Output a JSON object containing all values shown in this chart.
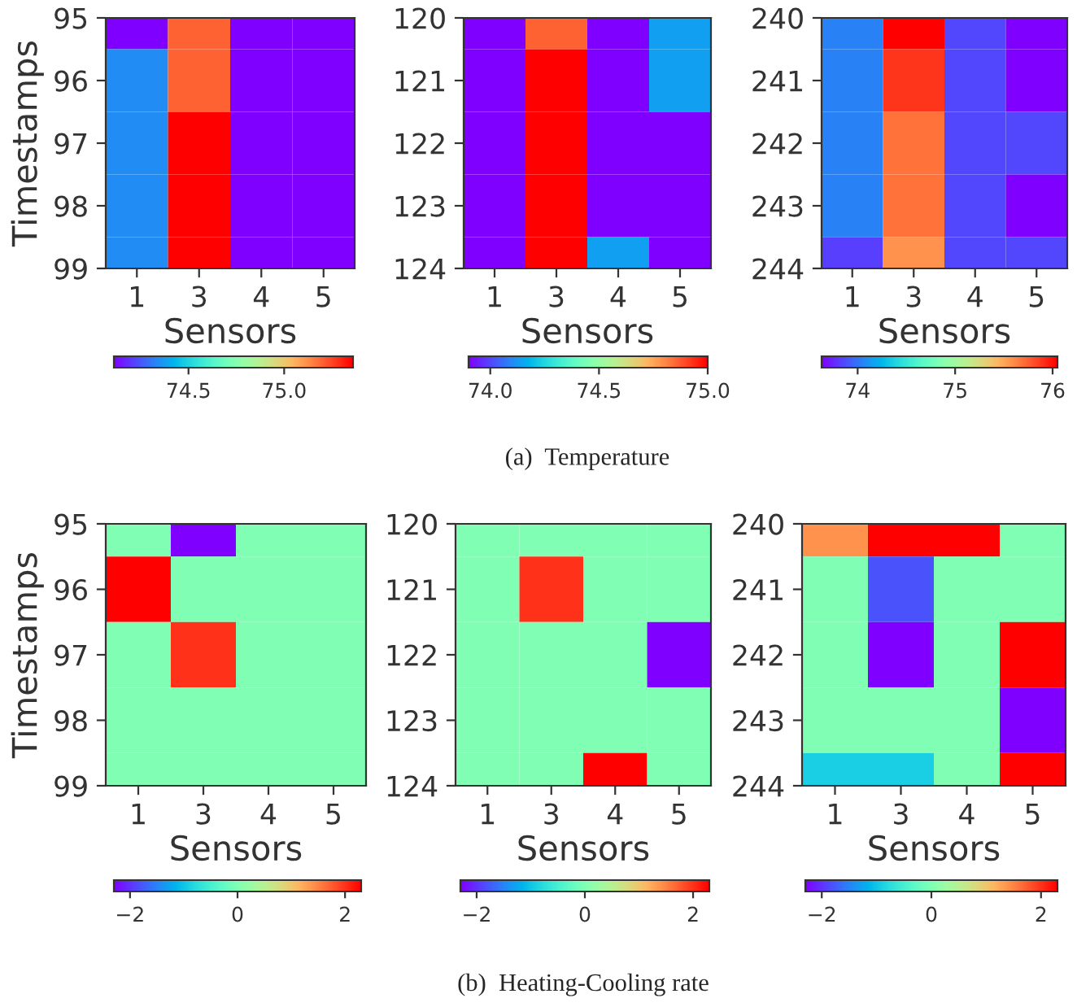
{
  "chart_data": [
    {
      "type": "heatmap",
      "ylabel": "Timestamps",
      "xlabel": "Sensors",
      "categories": [
        "1",
        "3",
        "4",
        "5"
      ],
      "y_categories": [
        "95",
        "96",
        "97",
        "98",
        "99"
      ],
      "cells": [
        [
          74.11,
          75.2,
          74.11,
          74.11
        ],
        [
          74.34,
          75.2,
          74.11,
          74.11
        ],
        [
          74.34,
          75.36,
          74.11,
          74.11
        ],
        [
          74.34,
          75.36,
          74.11,
          74.11
        ],
        [
          74.34,
          75.36,
          74.11,
          74.11
        ]
      ],
      "clim": [
        74.11,
        75.36
      ],
      "cticks": [
        {
          "value": 74.5,
          "label": "74.5"
        },
        {
          "value": 75.0,
          "label": "75.0"
        }
      ]
    },
    {
      "type": "heatmap",
      "xlabel": "Sensors",
      "categories": [
        "1",
        "3",
        "4",
        "5"
      ],
      "y_categories": [
        "120",
        "121",
        "122",
        "123",
        "124"
      ],
      "cells": [
        [
          73.9,
          74.86,
          73.9,
          74.14
        ],
        [
          73.9,
          75.0,
          73.9,
          74.14
        ],
        [
          73.9,
          75.0,
          73.9,
          73.9
        ],
        [
          73.9,
          75.0,
          73.9,
          73.9
        ],
        [
          73.9,
          75.0,
          74.14,
          73.9
        ]
      ],
      "clim": [
        73.9,
        75.0
      ],
      "cticks": [
        {
          "value": 74.0,
          "label": "74.0"
        },
        {
          "value": 74.5,
          "label": "74.5"
        },
        {
          "value": 75.0,
          "label": "75.0"
        }
      ],
      "annotations": [
        "(a)  Temperature"
      ]
    },
    {
      "type": "heatmap",
      "xlabel": "Sensors",
      "categories": [
        "1",
        "3",
        "4",
        "5"
      ],
      "y_categories": [
        "240",
        "241",
        "242",
        "243",
        "244"
      ],
      "cells": [
        [
          74.04,
          76.05,
          73.85,
          73.63
        ],
        [
          74.04,
          75.88,
          73.85,
          73.63
        ],
        [
          74.04,
          75.69,
          73.85,
          73.85
        ],
        [
          74.04,
          75.69,
          73.85,
          73.63
        ],
        [
          73.82,
          75.57,
          73.85,
          73.85
        ]
      ],
      "clim": [
        73.63,
        76.05
      ],
      "cticks": [
        74,
        75,
        76
      ]
    },
    {
      "type": "heatmap",
      "ylabel": "Timestamps",
      "xlabel": "Sensors",
      "categories": [
        "1",
        "3",
        "4",
        "5"
      ],
      "y_categories": [
        "95",
        "96",
        "97",
        "98",
        "99"
      ],
      "cells": [
        [
          0,
          -2.3,
          0,
          0
        ],
        [
          2.3,
          0,
          0,
          0
        ],
        [
          0,
          2.0,
          0,
          0
        ],
        [
          0,
          0,
          0,
          0
        ],
        [
          0,
          0,
          0,
          0
        ]
      ],
      "clim": [
        -2.3,
        2.3
      ],
      "cticks": [
        {
          "value": -2,
          "label": "−2"
        },
        0,
        2
      ]
    },
    {
      "type": "heatmap",
      "xlabel": "Sensors",
      "categories": [
        "1",
        "3",
        "4",
        "5"
      ],
      "y_categories": [
        "120",
        "121",
        "122",
        "123",
        "124"
      ],
      "cells": [
        [
          0,
          0,
          0,
          0
        ],
        [
          0,
          2.0,
          0,
          0
        ],
        [
          0,
          0,
          0,
          -2.3
        ],
        [
          0,
          0,
          0,
          0
        ],
        [
          0,
          0,
          2.3,
          0
        ]
      ],
      "clim": [
        -2.3,
        2.3
      ],
      "cticks": [
        {
          "value": -2,
          "label": "−2"
        },
        0,
        2
      ],
      "annotations": [
        "(b)  Heating-Cooling rate"
      ]
    },
    {
      "type": "heatmap",
      "xlabel": "Sensors",
      "categories": [
        "1",
        "3",
        "4",
        "5"
      ],
      "y_categories": [
        "240",
        "241",
        "242",
        "243",
        "244"
      ],
      "cells": [
        [
          1.4,
          2.3,
          2.3,
          0
        ],
        [
          0,
          -1.8,
          0,
          0
        ],
        [
          0,
          -2.3,
          0,
          2.3
        ],
        [
          0,
          0,
          0,
          -2.3
        ],
        [
          -0.9,
          -0.9,
          0,
          2.3
        ]
      ],
      "clim": [
        -2.3,
        2.3
      ],
      "cticks": [
        {
          "value": -2,
          "label": "−2"
        },
        0,
        2
      ]
    }
  ]
}
